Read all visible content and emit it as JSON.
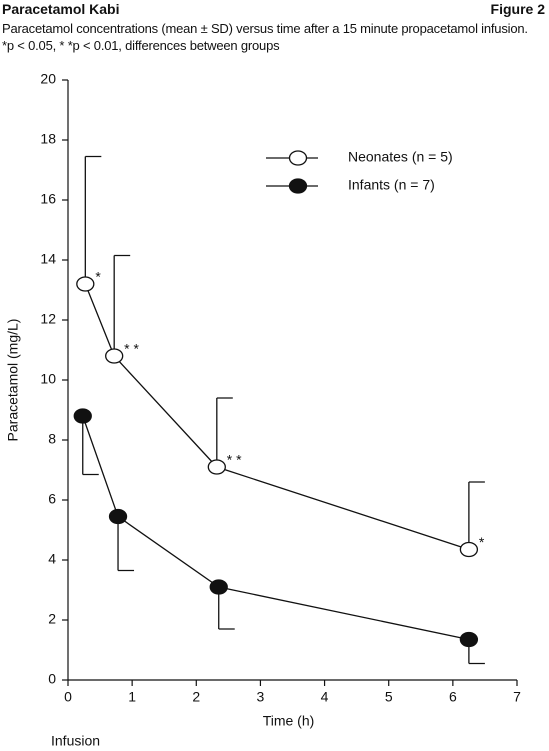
{
  "chart_data": {
    "type": "errorline",
    "title": "Paracetamol Kabi",
    "figure_label": "Figure 2",
    "subtitle": "Paracetamol concentrations (mean ± SD) versus time after a 15 minute propacetamol infusion.  *p < 0.05, * *p < 0.01, differences between groups",
    "x_label": "Time (h)",
    "y_label": "Paracetamol (mg/L)",
    "annotation": "Infusion",
    "xlim": [
      0,
      7
    ],
    "xticks": [
      0,
      1,
      2,
      3,
      4,
      5,
      6,
      7
    ],
    "ylim": [
      0,
      20
    ],
    "yticks": [
      0,
      2,
      4,
      6,
      8,
      10,
      12,
      14,
      16,
      18,
      20
    ],
    "legend": "upper right",
    "series": [
      {
        "name": "Neonates (n = 5)",
        "color": "#111111",
        "marker_fill": "#ffffff",
        "error_direction": "up",
        "x": [
          0.27,
          0.72,
          2.32,
          6.25
        ],
        "values": [
          13.2,
          10.8,
          7.1,
          4.35
        ],
        "errors": [
          4.25,
          3.35,
          2.3,
          2.25
        ],
        "significance": [
          "*",
          "* *",
          "* *",
          "*"
        ]
      },
      {
        "name": "Infants (n = 7)",
        "color": "#111111",
        "marker_fill": "#111111",
        "error_direction": "down",
        "x": [
          0.23,
          0.78,
          2.35,
          6.25
        ],
        "values": [
          8.8,
          5.45,
          3.1,
          1.35
        ],
        "errors": [
          1.95,
          1.8,
          1.4,
          0.8
        ]
      }
    ]
  }
}
